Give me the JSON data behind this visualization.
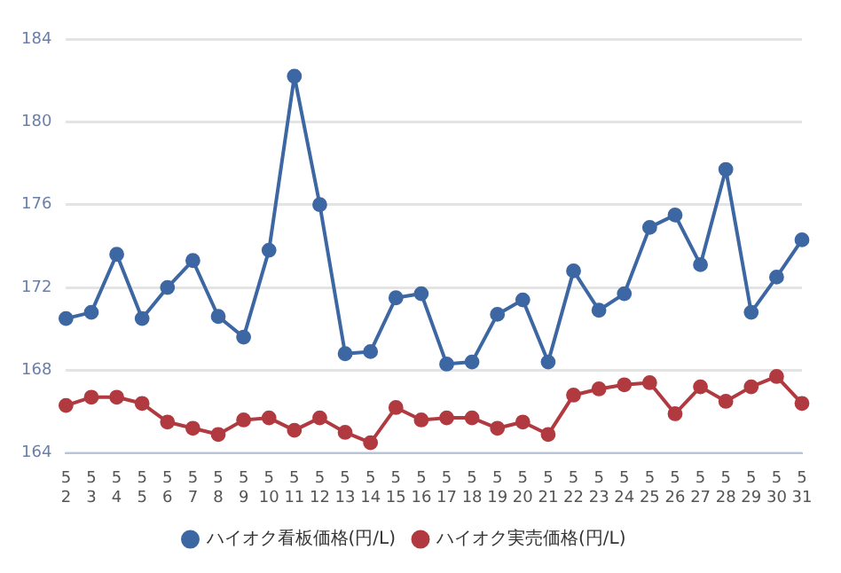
{
  "chart_data": {
    "type": "line",
    "categories": [
      "5\n2",
      "5\n3",
      "5\n4",
      "5\n5",
      "5\n6",
      "5\n7",
      "5\n8",
      "5\n9",
      "5\n10",
      "5\n11",
      "5\n12",
      "5\n13",
      "5\n14",
      "5\n15",
      "5\n16",
      "5\n17",
      "5\n18",
      "5\n19",
      "5\n20",
      "5\n21",
      "5\n22",
      "5\n23",
      "5\n24",
      "5\n25",
      "5\n26",
      "5\n27",
      "5\n28",
      "5\n29",
      "5\n30",
      "5\n31"
    ],
    "series": [
      {
        "name": "ハイオク看板価格(円/L)",
        "color": "#3d67a3",
        "values": [
          170.5,
          170.8,
          173.6,
          170.5,
          172.0,
          173.3,
          170.6,
          169.6,
          173.8,
          182.2,
          176.0,
          168.8,
          168.9,
          171.5,
          171.7,
          168.3,
          168.4,
          170.7,
          171.4,
          168.4,
          172.8,
          170.9,
          171.7,
          174.9,
          175.5,
          173.1,
          177.7,
          170.8,
          172.5,
          174.3
        ]
      },
      {
        "name": "ハイオク実売価格(円/L)",
        "color": "#b03a3f",
        "values": [
          166.3,
          166.7,
          166.7,
          166.4,
          165.5,
          165.2,
          164.9,
          165.6,
          165.7,
          165.1,
          165.7,
          165.0,
          164.5,
          166.2,
          165.6,
          165.7,
          165.7,
          165.2,
          165.5,
          164.9,
          166.8,
          167.1,
          167.3,
          167.4,
          165.9,
          167.2,
          166.5,
          167.2,
          167.7,
          166.4
        ]
      }
    ],
    "ylim": [
      164,
      184
    ],
    "yticks": [
      164,
      168,
      172,
      176,
      180,
      184
    ],
    "grid": "y",
    "legend": "bottom",
    "marker": "circle",
    "line_style": "solid"
  }
}
